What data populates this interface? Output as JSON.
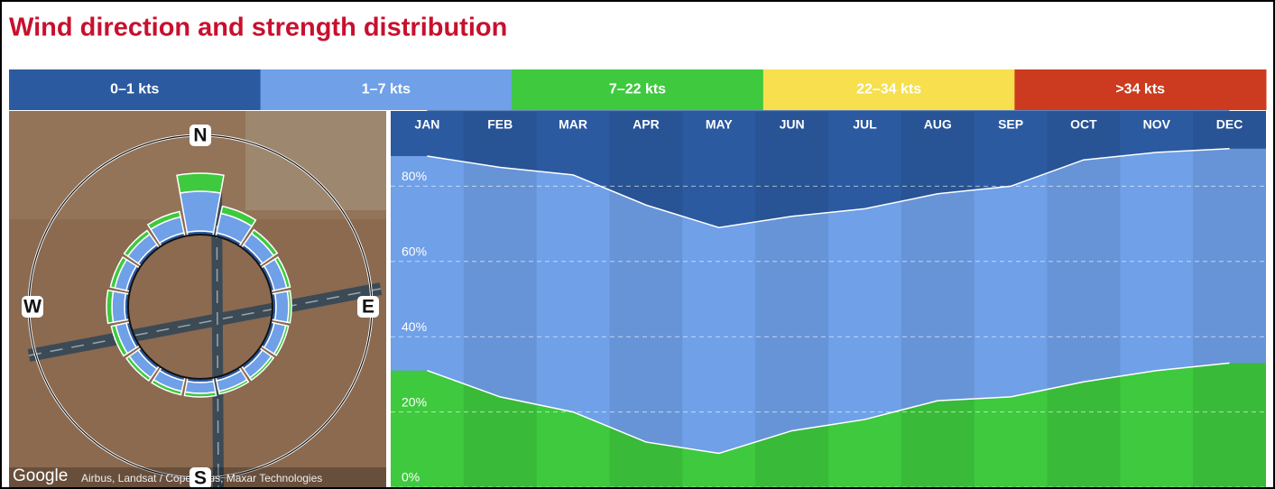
{
  "title": "Wind direction and strength distribution",
  "legend": [
    {
      "label": "0–1 kts",
      "color": "#2c5aa0"
    },
    {
      "label": "1–7 kts",
      "color": "#6fa0e8"
    },
    {
      "label": "7–22 kts",
      "color": "#3ec93e"
    },
    {
      "label": "22–34 kts",
      "color": "#f7df4d"
    },
    {
      "label": ">34 kts",
      "color": "#cc3b1f"
    }
  ],
  "map": {
    "provider": "Google",
    "attribution": "Airbus, Landsat / Copernicus, Maxar Technologies"
  },
  "chart_data": [
    {
      "type": "area",
      "stacked": true,
      "categories": [
        "JAN",
        "FEB",
        "MAR",
        "APR",
        "MAY",
        "JUN",
        "JUL",
        "AUG",
        "SEP",
        "OCT",
        "NOV",
        "DEC"
      ],
      "series": [
        {
          "name": "7–22 kts",
          "color": "#3ec93e",
          "values": [
            31,
            24,
            20,
            12,
            9,
            15,
            18,
            23,
            24,
            28,
            31,
            33
          ]
        },
        {
          "name": "1–7 kts",
          "color": "#6fa0e8",
          "values": [
            57,
            61,
            63,
            63,
            60,
            57,
            56,
            55,
            56,
            59,
            58,
            57
          ]
        },
        {
          "name": "0–1 kts",
          "color": "#2c5aa0",
          "values": [
            12,
            15,
            17,
            25,
            31,
            28,
            26,
            22,
            20,
            13,
            11,
            10
          ]
        }
      ],
      "ylim": [
        0,
        100
      ],
      "yticks": [
        {
          "value": 0,
          "label": "0%"
        },
        {
          "value": 20,
          "label": "20%"
        },
        {
          "value": 40,
          "label": "40%"
        },
        {
          "value": 60,
          "label": "60%"
        },
        {
          "value": 80,
          "label": "80%"
        }
      ],
      "grid": true
    },
    {
      "type": "rose",
      "compass": [
        "N",
        "E",
        "S",
        "W"
      ],
      "series": [
        {
          "name": "0–1 kts",
          "color": "#2c5aa0",
          "values": [
            4,
            4,
            4,
            4,
            4,
            4,
            4,
            4,
            4,
            4,
            4,
            4,
            4,
            4,
            4,
            4
          ]
        },
        {
          "name": "1–7 kts",
          "color": "#6fa0e8",
          "values": [
            44,
            22,
            15,
            14,
            14,
            13,
            12,
            12,
            12,
            12,
            12,
            12,
            14,
            13,
            14,
            18
          ]
        },
        {
          "name": "7–22 kts",
          "color": "#3ec93e",
          "values": [
            20,
            8,
            5,
            4,
            3,
            3,
            3,
            3,
            4,
            4,
            4,
            5,
            6,
            5,
            5,
            6
          ]
        }
      ]
    }
  ]
}
